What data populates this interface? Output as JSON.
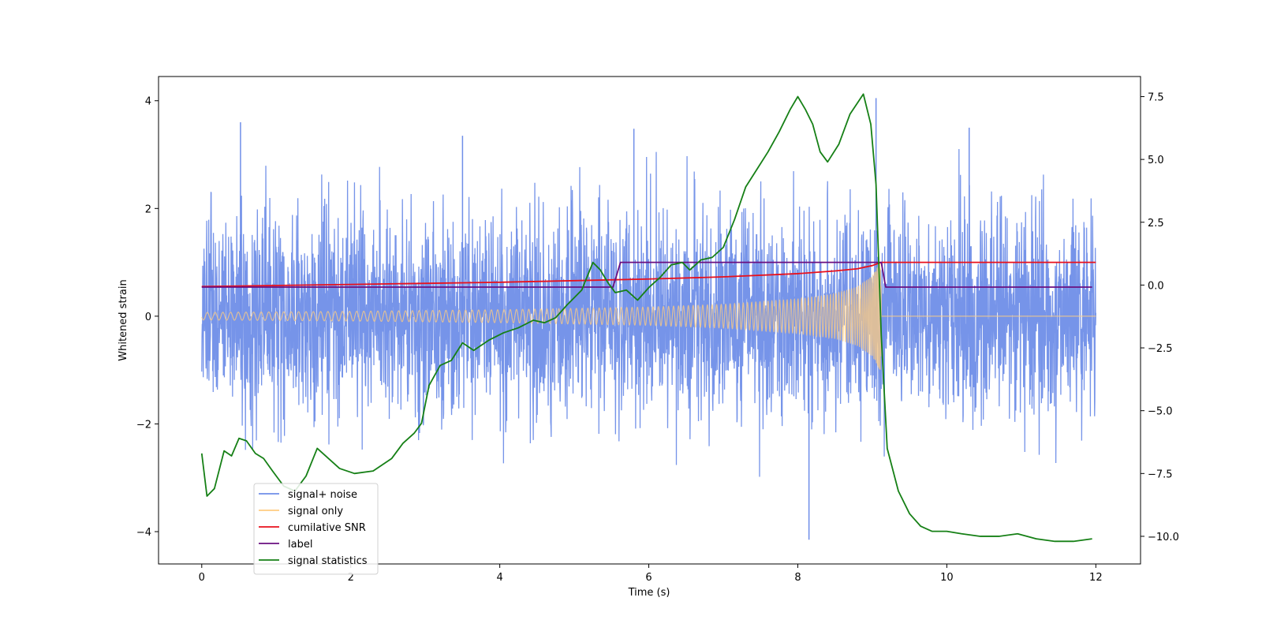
{
  "chart_data": {
    "type": "line",
    "title": "",
    "xlabel": "Time (s)",
    "ylabel": "Whitened strain",
    "y2label": "",
    "xlim": [
      -0.58,
      12.6
    ],
    "ylim": [
      -4.6,
      4.45
    ],
    "y2lim": [
      -11.1,
      8.3
    ],
    "x_ticks": [
      0,
      2,
      4,
      6,
      8,
      10,
      12
    ],
    "x_tick_labels": [
      "0",
      "2",
      "4",
      "6",
      "8",
      "10",
      "12"
    ],
    "y_ticks": [
      -4,
      -2,
      0,
      2,
      4
    ],
    "y_tick_labels": [
      "−4",
      "−2",
      "0",
      "2",
      "4"
    ],
    "y2_ticks": [
      -10,
      -7.5,
      -5,
      -2.5,
      0,
      2.5,
      5,
      7.5
    ],
    "y2_tick_labels": [
      "−10.0",
      "−7.5",
      "−5.0",
      "−2.5",
      "0.0",
      "2.5",
      "5.0",
      "7.5"
    ],
    "grid": false,
    "legend_position": "lower-left",
    "legend": [
      {
        "label": "signal+ noise",
        "color": "#6f8ee8"
      },
      {
        "label": "signal only",
        "color": "#ffcc80"
      },
      {
        "label": "cumilative SNR",
        "color": "#e8101c"
      },
      {
        "label": "label",
        "color": "#6a0f80"
      },
      {
        "label": "signal statistics",
        "color": "#168016"
      }
    ],
    "series": [
      {
        "name": "signal+ noise",
        "axis": "left",
        "color": "#6f8ee8",
        "description": "whitened strain noise, sampled 0–12 s, approx. ±2.2 typical with peaks to ±4",
        "x_range": [
          0,
          12
        ],
        "noise_sigma": 0.95,
        "extreme_points": [
          [
            0.52,
            3.6
          ],
          [
            8.15,
            -4.15
          ],
          [
            9.05,
            4.05
          ],
          [
            5.8,
            3.48
          ],
          [
            3.5,
            3.35
          ],
          [
            10.3,
            3.5
          ]
        ]
      },
      {
        "name": "signal only",
        "axis": "left",
        "color": "#ffcc80",
        "description": "chirp envelope growing from ~0.07 at t=0 to ~1.0 at t≈9.1 s, zero after merger",
        "x_range": [
          0,
          12
        ],
        "merger_time": 9.12,
        "envelope": [
          [
            0,
            0.07
          ],
          [
            2,
            0.09
          ],
          [
            4,
            0.12
          ],
          [
            6,
            0.17
          ],
          [
            7,
            0.22
          ],
          [
            8,
            0.32
          ],
          [
            8.5,
            0.42
          ],
          [
            8.8,
            0.55
          ],
          [
            9.0,
            0.75
          ],
          [
            9.1,
            1.0
          ]
        ]
      },
      {
        "name": "cumilative SNR",
        "axis": "left",
        "color": "#e8101c",
        "x": [
          0,
          2,
          4,
          5,
          6,
          7,
          8,
          8.5,
          8.8,
          9.0,
          9.12,
          12
        ],
        "values": [
          0.55,
          0.59,
          0.63,
          0.66,
          0.69,
          0.73,
          0.79,
          0.84,
          0.88,
          0.94,
          1.0,
          1.0
        ]
      },
      {
        "name": "label",
        "axis": "left",
        "color": "#6a0f80",
        "x": [
          0,
          5.52,
          5.62,
          9.12,
          9.18,
          11.95
        ],
        "values": [
          0.54,
          0.54,
          1.0,
          1.0,
          0.54,
          0.54
        ]
      },
      {
        "name": "signal statistics",
        "axis": "right",
        "color": "#168016",
        "x": [
          0,
          0.07,
          0.17,
          0.3,
          0.4,
          0.5,
          0.6,
          0.72,
          0.83,
          0.95,
          1.1,
          1.25,
          1.4,
          1.55,
          1.7,
          1.85,
          2.05,
          2.3,
          2.55,
          2.7,
          2.85,
          2.95,
          3.05,
          3.2,
          3.35,
          3.5,
          3.65,
          3.85,
          4.05,
          4.25,
          4.45,
          4.6,
          4.75,
          4.9,
          5.1,
          5.25,
          5.35,
          5.45,
          5.55,
          5.7,
          5.85,
          6.0,
          6.15,
          6.3,
          6.45,
          6.55,
          6.7,
          6.85,
          7.0,
          7.15,
          7.3,
          7.45,
          7.6,
          7.75,
          7.9,
          8.0,
          8.1,
          8.2,
          8.3,
          8.4,
          8.55,
          8.7,
          8.88,
          8.98,
          9.05,
          9.12,
          9.2,
          9.35,
          9.5,
          9.65,
          9.8,
          10.0,
          10.2,
          10.45,
          10.7,
          10.95,
          11.2,
          11.45,
          11.7,
          11.95
        ],
        "values": [
          -6.7,
          -8.4,
          -8.1,
          -6.6,
          -6.8,
          -6.1,
          -6.2,
          -6.7,
          -6.9,
          -7.4,
          -8.0,
          -8.2,
          -7.6,
          -6.5,
          -6.9,
          -7.3,
          -7.5,
          -7.4,
          -6.9,
          -6.3,
          -5.9,
          -5.5,
          -4.0,
          -3.2,
          -3.0,
          -2.3,
          -2.6,
          -2.2,
          -1.9,
          -1.7,
          -1.4,
          -1.5,
          -1.3,
          -0.8,
          -0.2,
          0.9,
          0.6,
          0.1,
          -0.3,
          -0.2,
          -0.6,
          -0.1,
          0.3,
          0.8,
          0.9,
          0.6,
          1.0,
          1.1,
          1.5,
          2.6,
          3.9,
          4.6,
          5.3,
          6.1,
          7.0,
          7.5,
          7.0,
          6.4,
          5.3,
          4.9,
          5.6,
          6.8,
          7.6,
          6.4,
          4.0,
          -2.0,
          -6.5,
          -8.2,
          -9.1,
          -9.6,
          -9.8,
          -9.8,
          -9.9,
          -10.0,
          -10.0,
          -9.9,
          -10.1,
          -10.2,
          -10.2,
          -10.1
        ]
      }
    ]
  }
}
